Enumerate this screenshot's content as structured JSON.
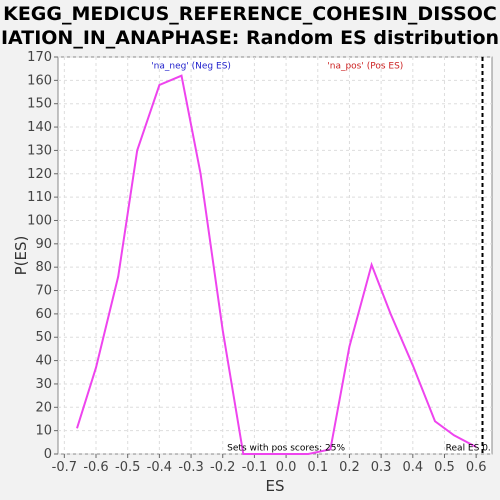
{
  "chart_data": {
    "type": "line",
    "title": "KEGG_MEDICUS_REFERENCE_COHESIN_DISSOCIATION_IN_ANAPHASE: Random ES distribution",
    "title_lines": [
      "KEGG_MEDICUS_REFERENCE_COHESIN_DISSOC",
      "IATION_IN_ANAPHASE: Random ES distribution"
    ],
    "xlabel": "ES",
    "ylabel": "P(ES)",
    "xlim": [
      -0.72,
      0.65
    ],
    "ylim": [
      0,
      170
    ],
    "x_ticks": [
      "-0.7",
      "-0.6",
      "-0.5",
      "-0.4",
      "-0.3",
      "-0.2",
      "-0.1",
      "0.0",
      "0.1",
      "0.2",
      "0.3",
      "0.4",
      "0.5",
      "0.6"
    ],
    "y_ticks": [
      "0",
      "10",
      "20",
      "30",
      "40",
      "50",
      "60",
      "70",
      "80",
      "90",
      "100",
      "110",
      "120",
      "130",
      "140",
      "150",
      "160",
      "170"
    ],
    "grid": true,
    "line_color": "#ee44ee",
    "series": [
      {
        "x": [
          -0.66,
          -0.6,
          -0.53,
          -0.47,
          -0.4,
          -0.33,
          -0.27,
          -0.2,
          -0.135,
          -0.07,
          0.0,
          0.07,
          0.14,
          0.2,
          0.27,
          0.33,
          0.4,
          0.47,
          0.53,
          0.6
        ],
        "values": [
          11,
          37,
          76,
          130,
          158,
          162,
          120,
          53,
          0,
          0,
          0,
          0,
          2,
          46,
          81,
          60,
          38,
          14,
          8,
          3
        ]
      }
    ],
    "annotations": [
      {
        "text": "'na_neg' (Neg ES)",
        "x": -0.3,
        "y": 165,
        "color": "#2222cc"
      },
      {
        "text": "'na_pos' (Pos ES)",
        "x": 0.25,
        "y": 165,
        "color": "#cc2222"
      },
      {
        "text": "Sets with pos scores: 25%",
        "x": 0.0,
        "y": 1.5,
        "color": "#000000"
      },
      {
        "text": "Real ES 0.",
        "x": 0.575,
        "y": 1.5,
        "color": "#000000"
      }
    ],
    "real_es_line": {
      "x": 0.62,
      "color": "#000000"
    }
  }
}
